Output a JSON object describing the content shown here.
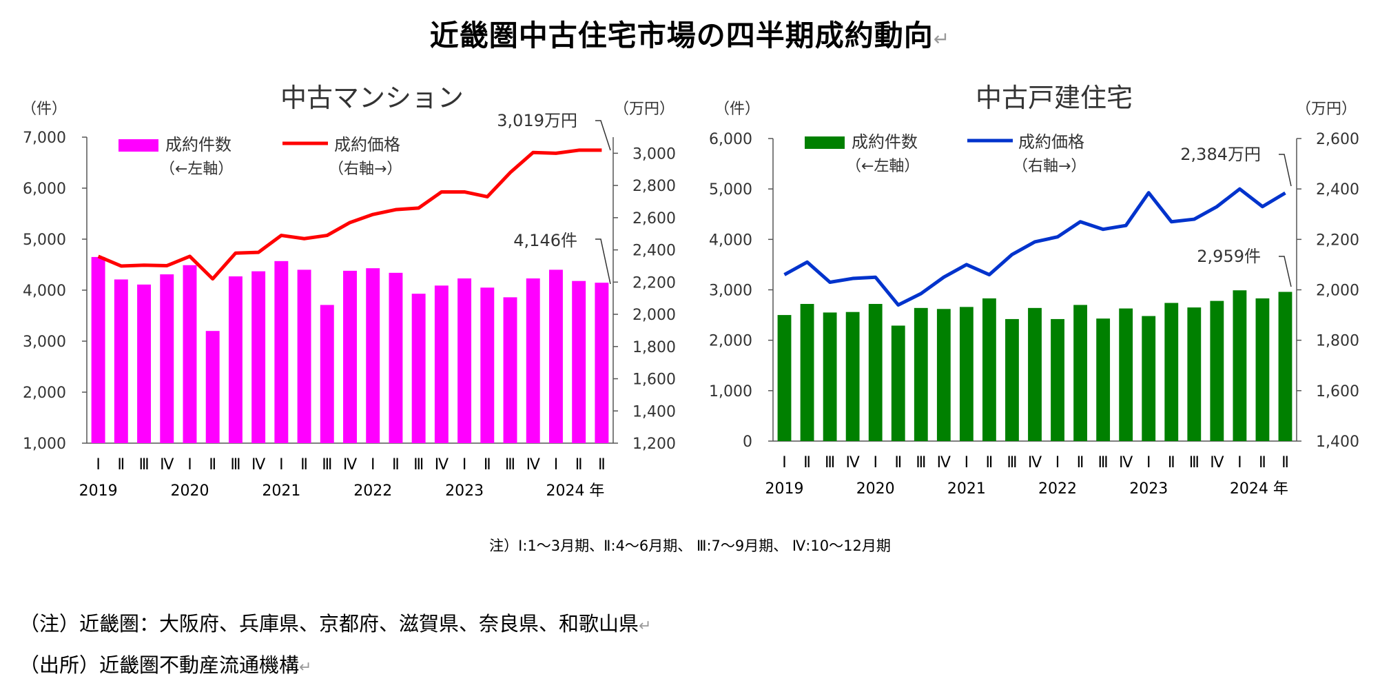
{
  "title": "近畿圏中古住宅市場の四半期成約動向",
  "return_mark": "↵",
  "quarter_labels": [
    "Ⅰ",
    "Ⅱ",
    "Ⅲ",
    "Ⅳ",
    "Ⅰ",
    "Ⅱ",
    "Ⅲ",
    "Ⅳ",
    "Ⅰ",
    "Ⅱ",
    "Ⅲ",
    "Ⅳ",
    "Ⅰ",
    "Ⅱ",
    "Ⅲ",
    "Ⅳ",
    "Ⅰ",
    "Ⅱ",
    "Ⅲ",
    "Ⅳ",
    "Ⅰ",
    "Ⅱ",
    "Ⅱ"
  ],
  "year_labels": [
    "2019",
    "2020",
    "2021",
    "2022",
    "2023",
    "2024 年"
  ],
  "note": "注）Ⅰ:1～3月期、Ⅱ:4～6月期、 Ⅲ:7～9月期、 Ⅳ:10～12月期",
  "footer": [
    "（注）近畿圏：大阪府、兵庫県、京都府、滋賀県、奈良県、和歌山県",
    "（出所）近畿圏不動産流通機構"
  ],
  "colors": {
    "mansion_bar": "#ff00ff",
    "mansion_line": "#ff0000",
    "house_bar": "#008000",
    "house_line": "#0033cc"
  },
  "chart_data": [
    {
      "type": "bar",
      "title": "中古マンション",
      "left_axis_unit": "（件）",
      "right_axis_unit": "（万円）",
      "ylim_left": [
        1000,
        7000
      ],
      "ylim_right": [
        1200,
        3100
      ],
      "left_ticks": [
        "1,000",
        "2,000",
        "3,000",
        "4,000",
        "5,000",
        "6,000",
        "7,000"
      ],
      "right_ticks": [
        "1,200",
        "1,400",
        "1,600",
        "1,800",
        "2,000",
        "2,200",
        "2,400",
        "2,600",
        "2,800",
        "3,000"
      ],
      "series": [
        {
          "name": "成約件数",
          "sub": "（←左軸）",
          "kind": "bar",
          "axis": "left",
          "values": [
            4650,
            4210,
            4110,
            4310,
            4490,
            3200,
            4270,
            4370,
            4570,
            4400,
            3710,
            4380,
            4430,
            4340,
            3930,
            4090,
            4230,
            4050,
            3860,
            4230,
            4400,
            4180,
            4146
          ]
        },
        {
          "name": "成約価格",
          "sub": "（右軸→）",
          "kind": "line",
          "axis": "right",
          "values": [
            2360,
            2300,
            2305,
            2302,
            2360,
            2220,
            2380,
            2385,
            2490,
            2470,
            2490,
            2570,
            2620,
            2650,
            2660,
            2760,
            2760,
            2730,
            2880,
            3005,
            3000,
            3019,
            3019
          ]
        }
      ],
      "annotations": [
        {
          "text": "3,019万円"
        },
        {
          "text": "4,146件"
        }
      ]
    },
    {
      "type": "bar",
      "title": "中古戸建住宅",
      "left_axis_unit": "（件）",
      "right_axis_unit": "（万円）",
      "ylim_left": [
        0,
        6000
      ],
      "ylim_right": [
        1400,
        2600
      ],
      "left_ticks": [
        "0",
        "1,000",
        "2,000",
        "3,000",
        "4,000",
        "5,000",
        "6,000"
      ],
      "right_ticks": [
        "1,400",
        "1,600",
        "1,800",
        "2,000",
        "2,200",
        "2,400",
        "2,600"
      ],
      "series": [
        {
          "name": "成約件数",
          "sub": "（←左軸）",
          "kind": "bar",
          "axis": "left",
          "values": [
            2500,
            2720,
            2550,
            2560,
            2720,
            2290,
            2640,
            2620,
            2660,
            2830,
            2420,
            2640,
            2420,
            2700,
            2430,
            2630,
            2480,
            2740,
            2650,
            2780,
            2990,
            2830,
            2959
          ]
        },
        {
          "name": "成約価格",
          "sub": "（右軸→）",
          "kind": "line",
          "axis": "right",
          "values": [
            2060,
            2110,
            2030,
            2045,
            2050,
            1940,
            1985,
            2050,
            2100,
            2060,
            2140,
            2190,
            2210,
            2270,
            2240,
            2255,
            2385,
            2270,
            2280,
            2330,
            2400,
            2330,
            2384
          ]
        }
      ],
      "annotations": [
        {
          "text": "2,384万円"
        },
        {
          "text": "2,959件"
        }
      ]
    }
  ]
}
